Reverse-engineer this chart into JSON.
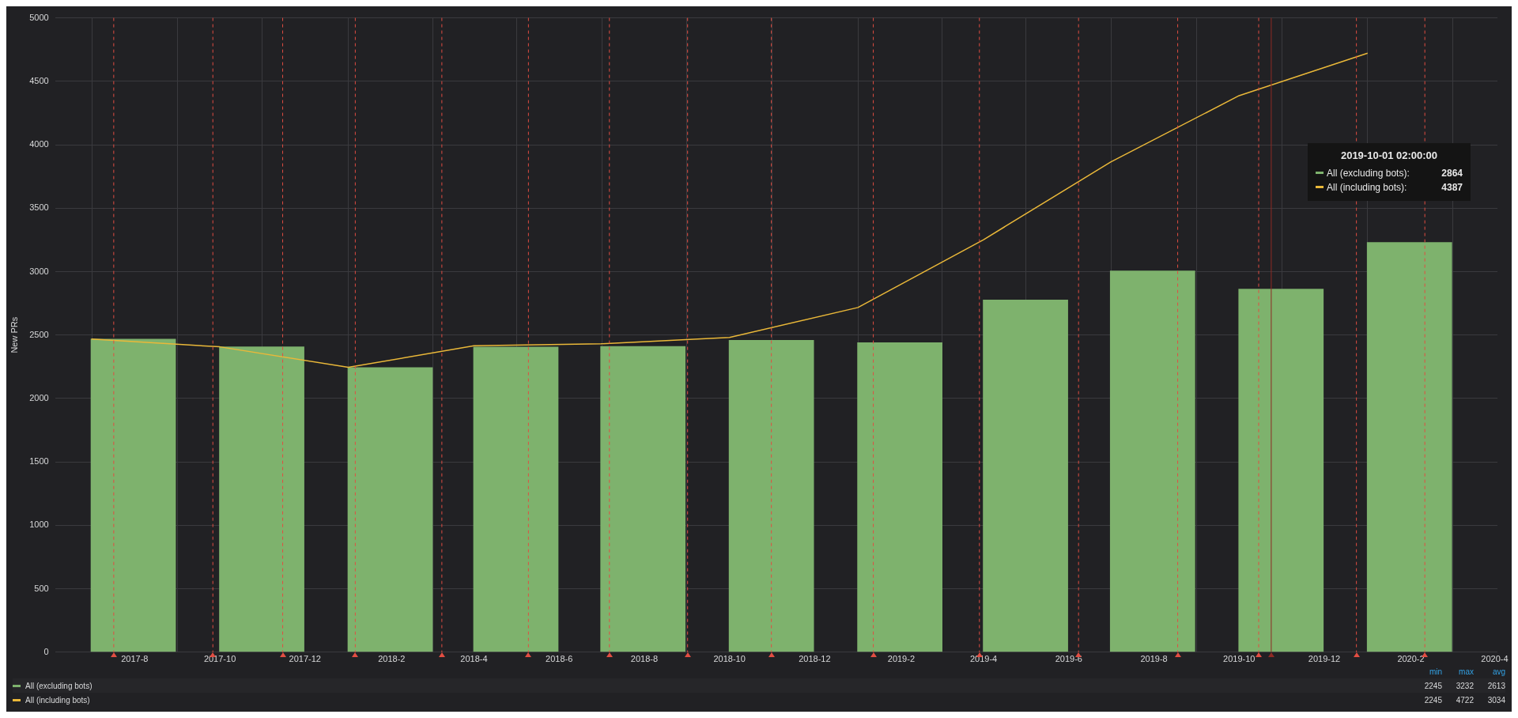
{
  "chart_data": {
    "type": "bar",
    "ylabel": "New PRs",
    "x": [
      "2017-07-31",
      "2017-10-31",
      "2018-01-31",
      "2018-05-01",
      "2018-07-31",
      "2018-10-31",
      "2019-01-31",
      "2019-05-01",
      "2019-07-31",
      "2019-10-31",
      "2020-01-31"
    ],
    "series": [
      {
        "name": "All (excluding bots)",
        "color": "#7eb26d",
        "values": [
          2470,
          2410,
          2245,
          2408,
          2412,
          2461,
          2442,
          2779,
          3008,
          2864,
          3232
        ]
      },
      {
        "name": "All (including bots)",
        "type": "line",
        "color": "#eab839",
        "x": [
          "2017-07-01",
          "2017-10-01",
          "2018-01-01",
          "2018-04-01",
          "2018-07-01",
          "2018-10-01",
          "2019-01-01",
          "2019-04-01",
          "2019-07-01",
          "2019-10-01",
          "2020-01-01"
        ],
        "values": [
          2469,
          2407,
          2245,
          2415,
          2431,
          2481,
          2717,
          3252,
          3864,
          4387,
          4722
        ]
      }
    ],
    "xlim": [
      "2017-06-05",
      "2020-04-03"
    ],
    "xticks": [
      {
        "value": "2017-08",
        "label": "2017-8"
      },
      {
        "value": "2017-10",
        "label": "2017-10"
      },
      {
        "value": "2017-12",
        "label": "2017-12"
      },
      {
        "value": "2018-02",
        "label": "2018-2"
      },
      {
        "value": "2018-04",
        "label": "2018-4"
      },
      {
        "value": "2018-06",
        "label": "2018-6"
      },
      {
        "value": "2018-08",
        "label": "2018-8"
      },
      {
        "value": "2018-10",
        "label": "2018-10"
      },
      {
        "value": "2018-12",
        "label": "2018-12"
      },
      {
        "value": "2019-02",
        "label": "2019-2"
      },
      {
        "value": "2019-04",
        "label": "2019-4"
      },
      {
        "value": "2019-06",
        "label": "2019-6"
      },
      {
        "value": "2019-08",
        "label": "2019-8"
      },
      {
        "value": "2019-10",
        "label": "2019-10"
      },
      {
        "value": "2019-12",
        "label": "2019-12"
      },
      {
        "value": "2020-02",
        "label": "2020-2"
      },
      {
        "value": "2020-04",
        "label": "2020-4"
      }
    ],
    "ylim": [
      0,
      5000
    ],
    "yticks": [
      0,
      500,
      1000,
      1500,
      2000,
      2500,
      3000,
      3500,
      4000,
      4500,
      5000
    ],
    "grid": true,
    "legend": "bottom",
    "marker": "none",
    "line_style": "solid",
    "ref_lines": [
      {
        "axis": "x",
        "value": "2017-07-17",
        "color": "#e24d42",
        "line_style": "dashed"
      },
      {
        "axis": "x",
        "value": "2017-09-26",
        "color": "#e24d42",
        "line_style": "dashed"
      },
      {
        "axis": "x",
        "value": "2017-11-15",
        "color": "#e24d42",
        "line_style": "dashed"
      },
      {
        "axis": "x",
        "value": "2018-01-06",
        "color": "#e24d42",
        "line_style": "dashed"
      },
      {
        "axis": "x",
        "value": "2018-03-09",
        "color": "#e24d42",
        "line_style": "dashed"
      },
      {
        "axis": "x",
        "value": "2018-05-10",
        "color": "#e24d42",
        "line_style": "dashed"
      },
      {
        "axis": "x",
        "value": "2018-07-07",
        "color": "#e24d42",
        "line_style": "dashed"
      },
      {
        "axis": "x",
        "value": "2018-09-01",
        "color": "#e24d42",
        "line_style": "dashed"
      },
      {
        "axis": "x",
        "value": "2018-10-31",
        "color": "#e24d42",
        "line_style": "dashed"
      },
      {
        "axis": "x",
        "value": "2019-01-12",
        "color": "#e24d42",
        "line_style": "dashed"
      },
      {
        "axis": "x",
        "value": "2019-03-29",
        "color": "#e24d42",
        "line_style": "dashed"
      },
      {
        "axis": "x",
        "value": "2019-06-08",
        "color": "#e24d42",
        "line_style": "dashed"
      },
      {
        "axis": "x",
        "value": "2019-08-18",
        "color": "#e24d42",
        "line_style": "dashed"
      },
      {
        "axis": "x",
        "value": "2019-10-15",
        "color": "#e24d42",
        "line_style": "dashed"
      },
      {
        "axis": "x",
        "value": "2019-10-24",
        "color": "#8f2a24",
        "line_style": "solid"
      },
      {
        "axis": "x",
        "value": "2019-12-24",
        "color": "#e24d42",
        "line_style": "dashed"
      },
      {
        "axis": "x",
        "value": "2020-02-11",
        "color": "#e24d42",
        "line_style": "dashed"
      }
    ],
    "annotations": [
      "2019-10-01 02:00:00",
      "All (excluding bots):",
      "2864",
      "All (including bots):",
      "4387",
      "min",
      "max",
      "avg",
      "2245",
      "3232",
      "2613",
      "2245",
      "4722",
      "3034"
    ]
  }
}
